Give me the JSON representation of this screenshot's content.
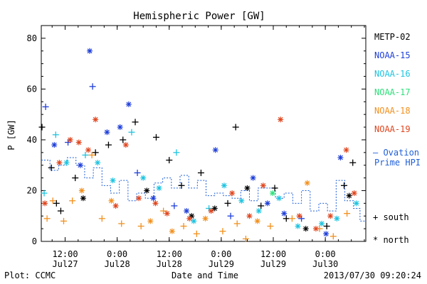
{
  "chart_data": {
    "type": "scatter",
    "title": "Hemispheric Power [GW]",
    "ylabel": "P [GW]",
    "xlabel": "Date and Time",
    "ylim": [
      0,
      85
    ],
    "xlim": [
      "2013-07-27 06:30",
      "2013-07-30 09:20"
    ],
    "x_ticks": [
      {
        "time": "12:00",
        "date": "Jul27",
        "at": "2013-07-27 12:00"
      },
      {
        "time": "0:00",
        "date": "Jul28",
        "at": "2013-07-28 00:00"
      },
      {
        "time": "12:00",
        "date": "Jul28",
        "at": "2013-07-28 12:00"
      },
      {
        "time": "0:00",
        "date": "Jul29",
        "at": "2013-07-29 00:00"
      },
      {
        "time": "12:00",
        "date": "Jul29",
        "at": "2013-07-29 12:00"
      },
      {
        "time": "0:00",
        "date": "Jul30",
        "at": "2013-07-30 00:00"
      }
    ],
    "y_ticks": [
      0,
      20,
      40,
      60,
      80
    ],
    "legend": {
      "placement": "right",
      "satellites": [
        {
          "name": "METP-02",
          "color": "#000000"
        },
        {
          "name": "NOAA-15",
          "color": "#1f3fd9"
        },
        {
          "name": "NOAA-16",
          "color": "#1fc4e0"
        },
        {
          "name": "NOAA-17",
          "color": "#2ee07a"
        },
        {
          "name": "NOAA-18",
          "color": "#f2901e"
        },
        {
          "name": "NOAA-19",
          "color": "#e0461f"
        }
      ],
      "ovation_label_1": "— Ovation",
      "ovation_label_2": "Prime HPI",
      "ovation_color": "#1f5fd9",
      "south_label": "+ south",
      "north_label": "* north"
    },
    "footer_left": "Plot: CCMC",
    "footer_right": "2013/07/30 09:20:24",
    "series": [
      {
        "name": "METP-02",
        "color": "#000000",
        "points": [
          {
            "t": "2013-07-27 06:40",
            "v": 45,
            "m": "+"
          },
          {
            "t": "2013-07-27 08:50",
            "v": 29,
            "m": "+"
          },
          {
            "t": "2013-07-27 10:00",
            "v": 15,
            "m": "+"
          },
          {
            "t": "2013-07-27 11:00",
            "v": 12,
            "m": "+"
          },
          {
            "t": "2013-07-27 14:20",
            "v": 25,
            "m": "+"
          },
          {
            "t": "2013-07-27 16:10",
            "v": 17,
            "m": "*"
          },
          {
            "t": "2013-07-27 19:00",
            "v": 35,
            "m": "+"
          },
          {
            "t": "2013-07-27 22:00",
            "v": 38,
            "m": "+"
          },
          {
            "t": "2013-07-28 01:20",
            "v": 40,
            "m": "+"
          },
          {
            "t": "2013-07-28 04:10",
            "v": 47,
            "m": "+"
          },
          {
            "t": "2013-07-28 06:50",
            "v": 20,
            "m": "*"
          },
          {
            "t": "2013-07-28 09:00",
            "v": 41,
            "m": "+"
          },
          {
            "t": "2013-07-28 12:00",
            "v": 32,
            "m": "+"
          },
          {
            "t": "2013-07-28 14:50",
            "v": 22,
            "m": "+"
          },
          {
            "t": "2013-07-28 17:10",
            "v": 10,
            "m": "*"
          },
          {
            "t": "2013-07-28 19:20",
            "v": 27,
            "m": "+"
          },
          {
            "t": "2013-07-28 22:30",
            "v": 13,
            "m": "*"
          },
          {
            "t": "2013-07-29 01:30",
            "v": 15,
            "m": "+"
          },
          {
            "t": "2013-07-29 03:20",
            "v": 45,
            "m": "+"
          },
          {
            "t": "2013-07-29 06:00",
            "v": 21,
            "m": "*"
          },
          {
            "t": "2013-07-29 09:10",
            "v": 14,
            "m": "+"
          },
          {
            "t": "2013-07-29 12:20",
            "v": 21,
            "m": "+"
          },
          {
            "t": "2013-07-29 15:00",
            "v": 9,
            "m": "+"
          },
          {
            "t": "2013-07-29 19:30",
            "v": 5,
            "m": "*"
          },
          {
            "t": "2013-07-30 00:20",
            "v": 6,
            "m": "+"
          },
          {
            "t": "2013-07-30 04:20",
            "v": 22,
            "m": "+"
          },
          {
            "t": "2013-07-30 06:20",
            "v": 31,
            "m": "+"
          },
          {
            "t": "2013-07-30 05:30",
            "v": 18,
            "m": "*"
          }
        ]
      },
      {
        "name": "NOAA-15",
        "color": "#1f3fd9",
        "points": [
          {
            "t": "2013-07-27 07:30",
            "v": 53,
            "m": "+"
          },
          {
            "t": "2013-07-27 09:30",
            "v": 38,
            "m": "*"
          },
          {
            "t": "2013-07-27 12:40",
            "v": 39,
            "m": "+"
          },
          {
            "t": "2013-07-27 15:30",
            "v": 30,
            "m": "*"
          },
          {
            "t": "2013-07-27 17:40",
            "v": 75,
            "m": "*"
          },
          {
            "t": "2013-07-27 18:20",
            "v": 61,
            "m": "+"
          },
          {
            "t": "2013-07-27 21:40",
            "v": 43,
            "m": "*"
          },
          {
            "t": "2013-07-28 00:40",
            "v": 45,
            "m": "*"
          },
          {
            "t": "2013-07-28 02:40",
            "v": 54,
            "m": "*"
          },
          {
            "t": "2013-07-28 04:40",
            "v": 27,
            "m": "+"
          },
          {
            "t": "2013-07-28 08:20",
            "v": 17,
            "m": "*"
          },
          {
            "t": "2013-07-28 13:10",
            "v": 14,
            "m": "+"
          },
          {
            "t": "2013-07-28 16:00",
            "v": 12,
            "m": "*"
          },
          {
            "t": "2013-07-28 22:40",
            "v": 36,
            "m": "*"
          },
          {
            "t": "2013-07-29 02:10",
            "v": 10,
            "m": "+"
          },
          {
            "t": "2013-07-29 07:20",
            "v": 25,
            "m": "*"
          },
          {
            "t": "2013-07-29 10:40",
            "v": 15,
            "m": "*"
          },
          {
            "t": "2013-07-29 14:30",
            "v": 11,
            "m": "*"
          },
          {
            "t": "2013-07-29 18:30",
            "v": 9,
            "m": "+"
          },
          {
            "t": "2013-07-30 00:10",
            "v": 3,
            "m": "*"
          },
          {
            "t": "2013-07-30 03:30",
            "v": 33,
            "m": "*"
          }
        ]
      },
      {
        "name": "NOAA-16",
        "color": "#1fc4e0",
        "points": [
          {
            "t": "2013-07-27 07:10",
            "v": 19,
            "m": "+"
          },
          {
            "t": "2013-07-27 09:50",
            "v": 42,
            "m": "+"
          },
          {
            "t": "2013-07-27 12:20",
            "v": 31,
            "m": "*"
          },
          {
            "t": "2013-07-27 16:40",
            "v": 34,
            "m": "+"
          },
          {
            "t": "2013-07-27 19:30",
            "v": 31,
            "m": "*"
          },
          {
            "t": "2013-07-27 23:00",
            "v": 24,
            "m": "*"
          },
          {
            "t": "2013-07-28 03:20",
            "v": 43,
            "m": "+"
          },
          {
            "t": "2013-07-28 06:00",
            "v": 25,
            "m": "*"
          },
          {
            "t": "2013-07-28 09:40",
            "v": 21,
            "m": "*"
          },
          {
            "t": "2013-07-28 13:40",
            "v": 35,
            "m": "+"
          },
          {
            "t": "2013-07-28 17:40",
            "v": 8,
            "m": "*"
          },
          {
            "t": "2013-07-28 21:10",
            "v": 13,
            "m": "+"
          },
          {
            "t": "2013-07-29 00:40",
            "v": 22,
            "m": "*"
          },
          {
            "t": "2013-07-29 04:40",
            "v": 16,
            "m": "*"
          },
          {
            "t": "2013-07-29 08:40",
            "v": 12,
            "m": "*"
          },
          {
            "t": "2013-07-29 13:20",
            "v": 17,
            "m": "*"
          },
          {
            "t": "2013-07-29 17:40",
            "v": 6,
            "m": "*"
          },
          {
            "t": "2013-07-29 23:10",
            "v": 7,
            "m": "*"
          },
          {
            "t": "2013-07-30 02:40",
            "v": 9,
            "m": "*"
          },
          {
            "t": "2013-07-30 07:10",
            "v": 15,
            "m": "*"
          }
        ]
      },
      {
        "name": "NOAA-17",
        "color": "#2ee07a",
        "points": [
          {
            "t": "2013-07-29 11:50",
            "v": 19,
            "m": "*"
          }
        ]
      },
      {
        "name": "NOAA-18",
        "color": "#f2901e",
        "points": [
          {
            "t": "2013-07-27 07:50",
            "v": 9,
            "m": "+"
          },
          {
            "t": "2013-07-27 09:10",
            "v": 16,
            "m": "+"
          },
          {
            "t": "2013-07-27 11:40",
            "v": 8,
            "m": "+"
          },
          {
            "t": "2013-07-27 13:40",
            "v": 16,
            "m": "+"
          },
          {
            "t": "2013-07-27 15:50",
            "v": 20,
            "m": "*"
          },
          {
            "t": "2013-07-27 18:10",
            "v": 34,
            "m": "+"
          },
          {
            "t": "2013-07-27 20:30",
            "v": 9,
            "m": "+"
          },
          {
            "t": "2013-07-27 22:40",
            "v": 16,
            "m": "*"
          },
          {
            "t": "2013-07-28 01:00",
            "v": 7,
            "m": "+"
          },
          {
            "t": "2013-07-28 05:30",
            "v": 6,
            "m": "+"
          },
          {
            "t": "2013-07-28 07:40",
            "v": 8,
            "m": "*"
          },
          {
            "t": "2013-07-28 10:40",
            "v": 12,
            "m": "+"
          },
          {
            "t": "2013-07-28 12:40",
            "v": 4,
            "m": "*"
          },
          {
            "t": "2013-07-28 15:20",
            "v": 6,
            "m": "+"
          },
          {
            "t": "2013-07-28 18:20",
            "v": 3,
            "m": "+"
          },
          {
            "t": "2013-07-28 20:20",
            "v": 9,
            "m": "*"
          },
          {
            "t": "2013-07-29 00:20",
            "v": 4,
            "m": "+"
          },
          {
            "t": "2013-07-29 03:40",
            "v": 7,
            "m": "+"
          },
          {
            "t": "2013-07-29 05:40",
            "v": 1,
            "m": "+"
          },
          {
            "t": "2013-07-29 08:20",
            "v": 8,
            "m": "*"
          },
          {
            "t": "2013-07-29 11:20",
            "v": 6,
            "m": "+"
          },
          {
            "t": "2013-07-29 16:20",
            "v": 9,
            "m": "+"
          },
          {
            "t": "2013-07-29 19:50",
            "v": 23,
            "m": "*"
          },
          {
            "t": "2013-07-29 22:40",
            "v": 5,
            "m": "+"
          },
          {
            "t": "2013-07-30 01:50",
            "v": 2,
            "m": "+"
          },
          {
            "t": "2013-07-30 05:00",
            "v": 11,
            "m": "+"
          }
        ]
      },
      {
        "name": "NOAA-19",
        "color": "#e0461f",
        "points": [
          {
            "t": "2013-07-27 07:20",
            "v": 15,
            "m": "*"
          },
          {
            "t": "2013-07-27 10:40",
            "v": 31,
            "m": "*"
          },
          {
            "t": "2013-07-27 13:10",
            "v": 40,
            "m": "*"
          },
          {
            "t": "2013-07-27 15:10",
            "v": 39,
            "m": "*"
          },
          {
            "t": "2013-07-27 17:20",
            "v": 36,
            "m": "*"
          },
          {
            "t": "2013-07-27 19:00",
            "v": 48,
            "m": "*"
          },
          {
            "t": "2013-07-27 23:40",
            "v": 14,
            "m": "*"
          },
          {
            "t": "2013-07-28 02:00",
            "v": 38,
            "m": "*"
          },
          {
            "t": "2013-07-28 05:00",
            "v": 17,
            "m": "*"
          },
          {
            "t": "2013-07-28 08:50",
            "v": 15,
            "m": "*"
          },
          {
            "t": "2013-07-28 11:30",
            "v": 11,
            "m": "*"
          },
          {
            "t": "2013-07-28 16:40",
            "v": 9,
            "m": "*"
          },
          {
            "t": "2013-07-28 21:40",
            "v": 12,
            "m": "*"
          },
          {
            "t": "2013-07-29 02:30",
            "v": 19,
            "m": "*"
          },
          {
            "t": "2013-07-29 06:30",
            "v": 10,
            "m": "*"
          },
          {
            "t": "2013-07-29 09:40",
            "v": 22,
            "m": "*"
          },
          {
            "t": "2013-07-29 13:40",
            "v": 48,
            "m": "*"
          },
          {
            "t": "2013-07-29 18:00",
            "v": 10,
            "m": "*"
          },
          {
            "t": "2013-07-29 21:50",
            "v": 5,
            "m": "*"
          },
          {
            "t": "2013-07-30 01:10",
            "v": 10,
            "m": "*"
          },
          {
            "t": "2013-07-30 04:50",
            "v": 36,
            "m": "*"
          },
          {
            "t": "2013-07-30 06:40",
            "v": 19,
            "m": "*"
          }
        ]
      }
    ],
    "ovation_hpi": {
      "name": "Ovation Prime HPI",
      "color": "#1f5fd9",
      "points": [
        [
          "2013-07-27 06:30",
          32
        ],
        [
          "2013-07-27 08:30",
          28
        ],
        [
          "2013-07-27 10:30",
          30
        ],
        [
          "2013-07-27 12:30",
          33
        ],
        [
          "2013-07-27 14:30",
          30
        ],
        [
          "2013-07-27 16:30",
          25
        ],
        [
          "2013-07-27 18:30",
          29
        ],
        [
          "2013-07-27 20:30",
          22
        ],
        [
          "2013-07-27 22:30",
          19
        ],
        [
          "2013-07-28 00:30",
          24
        ],
        [
          "2013-07-28 02:30",
          16
        ],
        [
          "2013-07-28 04:30",
          19
        ],
        [
          "2013-07-28 06:30",
          17
        ],
        [
          "2013-07-28 08:30",
          23
        ],
        [
          "2013-07-28 10:30",
          25
        ],
        [
          "2013-07-28 12:30",
          21
        ],
        [
          "2013-07-28 14:30",
          26
        ],
        [
          "2013-07-28 16:30",
          21
        ],
        [
          "2013-07-28 18:30",
          24
        ],
        [
          "2013-07-28 20:30",
          18
        ],
        [
          "2013-07-28 22:30",
          19
        ],
        [
          "2013-07-29 00:30",
          18
        ],
        [
          "2013-07-29 02:30",
          17
        ],
        [
          "2013-07-29 04:30",
          20
        ],
        [
          "2013-07-29 06:30",
          16
        ],
        [
          "2013-07-29 08:30",
          21
        ],
        [
          "2013-07-29 10:30",
          21
        ],
        [
          "2013-07-29 12:30",
          17
        ],
        [
          "2013-07-29 14:30",
          19
        ],
        [
          "2013-07-29 16:30",
          15
        ],
        [
          "2013-07-29 18:30",
          20
        ],
        [
          "2013-07-29 20:30",
          12
        ],
        [
          "2013-07-29 22:30",
          15
        ],
        [
          "2013-07-30 00:30",
          12
        ],
        [
          "2013-07-30 02:30",
          24
        ],
        [
          "2013-07-30 04:30",
          16
        ],
        [
          "2013-07-30 06:30",
          13
        ],
        [
          "2013-07-30 08:00",
          8
        ],
        [
          "2013-07-30 09:20",
          8
        ]
      ]
    }
  }
}
